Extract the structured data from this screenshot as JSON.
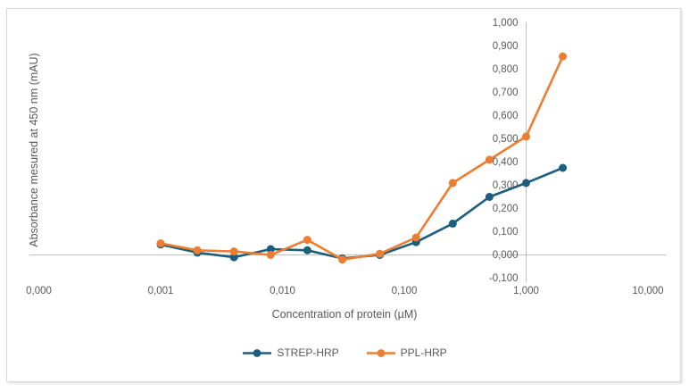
{
  "chart_data": {
    "type": "line",
    "title": "",
    "xlabel": "Concentration of protein (µM)",
    "ylabel": "Absorbance mesured at 450 nm (mAU)",
    "x_scale": "log",
    "ylim": [
      -0.1,
      1.0
    ],
    "grid": "zero-gridline-only",
    "legend_position": "bottom",
    "x": [
      0.001,
      0.002,
      0.004,
      0.008,
      0.016,
      0.031,
      0.063,
      0.125,
      0.25,
      0.5,
      1,
      2
    ],
    "series": [
      {
        "name": "STREP-HRP",
        "color": "#1B5E7D",
        "values": [
          0.045,
          0.01,
          -0.01,
          0.025,
          0.02,
          -0.015,
          0.0,
          0.055,
          0.135,
          0.25,
          0.31,
          0.375
        ]
      },
      {
        "name": "PPL-HRP",
        "color": "#ED7D31",
        "values": [
          0.05,
          0.02,
          0.015,
          0.0,
          0.065,
          -0.02,
          0.005,
          0.075,
          0.31,
          0.41,
          0.51,
          0.855
        ]
      }
    ],
    "x_ticks": [
      {
        "label": "0,000",
        "value": 0.0001
      },
      {
        "label": "0,001",
        "value": 0.001
      },
      {
        "label": "0,010",
        "value": 0.01
      },
      {
        "label": "0,100",
        "value": 0.1
      },
      {
        "label": "1,000",
        "value": 1
      },
      {
        "label": "10,000",
        "value": 10
      }
    ],
    "y_ticks": [
      {
        "label": "1,000",
        "value": 1.0
      },
      {
        "label": "0,900",
        "value": 0.9
      },
      {
        "label": "0,800",
        "value": 0.8
      },
      {
        "label": "0,700",
        "value": 0.7
      },
      {
        "label": "0,600",
        "value": 0.6
      },
      {
        "label": "0,500",
        "value": 0.5
      },
      {
        "label": "0,400",
        "value": 0.4
      },
      {
        "label": "0,300",
        "value": 0.3
      },
      {
        "label": "0,200",
        "value": 0.2
      },
      {
        "label": "0,100",
        "value": 0.1
      },
      {
        "label": "0,000",
        "value": 0.0
      },
      {
        "label": "-0,100",
        "value": -0.1
      }
    ],
    "colors": {
      "axis_line": "#bfbfbf",
      "tick_text": "#595959",
      "frame_border": "#d9d9d9"
    }
  }
}
